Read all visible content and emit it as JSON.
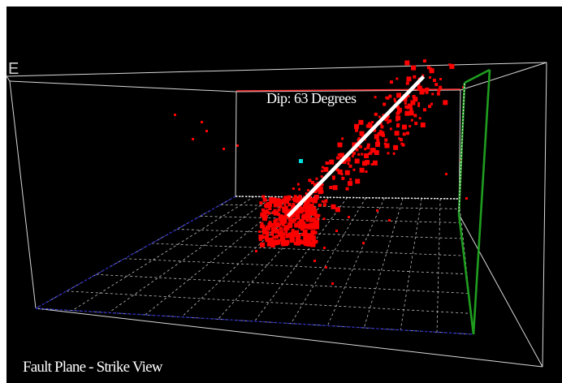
{
  "view": {
    "title": "Fault Plane - Strike View",
    "annotation": "Dip:  63 Degrees",
    "axis_label": "E"
  },
  "colors": {
    "background": "#000000",
    "box_edges": "#d9d9d9",
    "grid": "#bfbfbf",
    "event_markers": "#ff0000",
    "highlight_marker": "#00e0e0",
    "dip_line": "#ffffff",
    "strike_outline": "#1f9d1f",
    "floor_edge": "#2a2ab8",
    "ceiling_marker": "#ff3030"
  },
  "icons": {
    "event_marker": "red-square",
    "highlight_marker": "cyan-square",
    "dip_line": "white-line",
    "strike_plane": "green-outline"
  },
  "scene": {
    "hypocenter_markers": "red squares",
    "highlight": "single cyan marker"
  }
}
